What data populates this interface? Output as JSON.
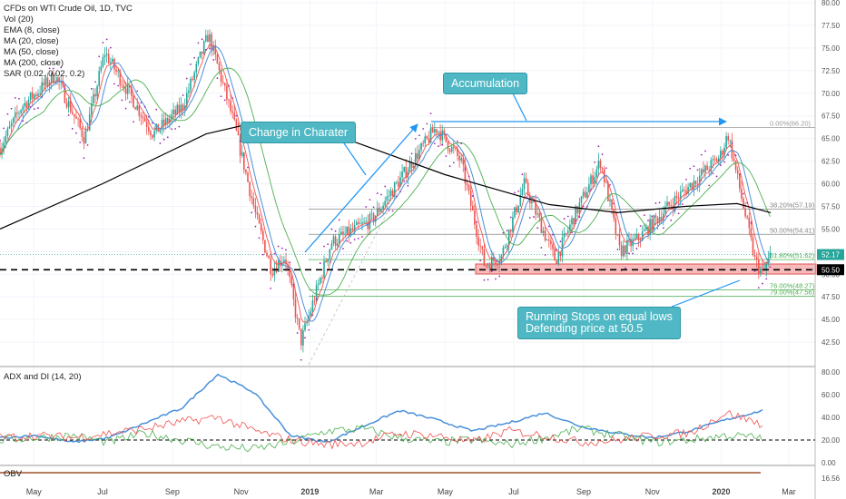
{
  "header": {
    "symbol_line": "CFDs on WTI Crude Oil, 1D, TVC",
    "indicators": [
      "Vol (20)",
      "EMA (8, close)",
      "MA (20, close)",
      "MA (50, close)",
      "MA (200, close)",
      "SAR (0.02, 0.02, 0.2)"
    ]
  },
  "annotations": {
    "accumulation": "Accumulation",
    "change_character": "Change in Charater",
    "running_stops_1": "Running Stops on equal lows",
    "running_stops_2": "Defending price at 50.5"
  },
  "fib_labels": [
    {
      "text": "0.00%(66.20)",
      "price": 66.2
    },
    {
      "text": "38.20%(57.19)",
      "price": 57.19
    },
    {
      "text": "50.00%(54.41)",
      "price": 54.41
    },
    {
      "text": "61.80%(51.62)",
      "price": 51.62
    },
    {
      "text": "76.00%(48.27)",
      "price": 48.27
    },
    {
      "text": "79.00%(47.56)",
      "price": 47.56
    }
  ],
  "price_badges": [
    {
      "text": "52.17",
      "price": 52.17,
      "color": "#26a69a"
    },
    {
      "text": "50.50",
      "price": 50.5,
      "color": "#000000"
    }
  ],
  "adx_panel": {
    "title": "ADX and DI (14, 20)",
    "ticks": [
      "80.00",
      "60.00",
      "40.00",
      "20.00",
      "0.00"
    ],
    "threshold": 20
  },
  "obv_panel": {
    "title": "OBV",
    "tick": "16.56"
  },
  "colors": {
    "up": "#26a69a",
    "down": "#ef5350",
    "ema": "#ef5350",
    "ma20": "#4a90d9",
    "ma50": "#4caf50",
    "ma200": "#000000",
    "sar": "#9c27b0",
    "annotation": "#4fb8c4",
    "arrow": "#2196f3",
    "zone": "#f28b8b",
    "adx": "#4a90d9",
    "di_plus": "#4caf50",
    "di_minus": "#ef5350"
  },
  "chart_data": {
    "type": "candlestick",
    "title": "CFDs on WTI Crude Oil, 1D, TVC",
    "y_axis": {
      "min": 40,
      "max": 80,
      "ticks": [
        42.5,
        45,
        47.5,
        50,
        52.5,
        55,
        57.5,
        60,
        62.5,
        65,
        67.5,
        70,
        72.5,
        75,
        77.5,
        80
      ]
    },
    "x_ticks": [
      "May",
      "Jul",
      "Sep",
      "Nov",
      "2019",
      "Mar",
      "May",
      "Jul",
      "Sep",
      "Nov",
      "2020",
      "Mar"
    ],
    "price_path": [
      {
        "date": "2018-04-01",
        "close": 64
      },
      {
        "date": "2018-04-20",
        "close": 68.5
      },
      {
        "date": "2018-05-20",
        "close": 72
      },
      {
        "date": "2018-06-15",
        "close": 65
      },
      {
        "date": "2018-07-03",
        "close": 74.5
      },
      {
        "date": "2018-08-15",
        "close": 65.5
      },
      {
        "date": "2018-09-10",
        "close": 68.5
      },
      {
        "date": "2018-10-03",
        "close": 76.5
      },
      {
        "date": "2018-10-25",
        "close": 67
      },
      {
        "date": "2018-11-15",
        "close": 56
      },
      {
        "date": "2018-11-28",
        "close": 50.5
      },
      {
        "date": "2018-12-10",
        "close": 52
      },
      {
        "date": "2018-12-24",
        "close": 42.5
      },
      {
        "date": "2019-01-20",
        "close": 53.5
      },
      {
        "date": "2019-02-25",
        "close": 56
      },
      {
        "date": "2019-04-23",
        "close": 66.2
      },
      {
        "date": "2019-05-15",
        "close": 62.5
      },
      {
        "date": "2019-06-05",
        "close": 51
      },
      {
        "date": "2019-06-20",
        "close": 52
      },
      {
        "date": "2019-07-10",
        "close": 60
      },
      {
        "date": "2019-08-07",
        "close": 51.5
      },
      {
        "date": "2019-08-22",
        "close": 56
      },
      {
        "date": "2019-09-16",
        "close": 62.5
      },
      {
        "date": "2019-10-03",
        "close": 52.5
      },
      {
        "date": "2019-10-20",
        "close": 54
      },
      {
        "date": "2019-11-15",
        "close": 57.5
      },
      {
        "date": "2019-12-31",
        "close": 63
      },
      {
        "date": "2020-01-07",
        "close": 65.5
      },
      {
        "date": "2020-01-31",
        "close": 51.5
      },
      {
        "date": "2020-02-07",
        "close": 50
      },
      {
        "date": "2020-02-14",
        "close": 52.17
      }
    ],
    "ma200_path": [
      {
        "date": "2018-04-01",
        "value": 55
      },
      {
        "date": "2018-07-01",
        "value": 60
      },
      {
        "date": "2018-10-01",
        "value": 65.5
      },
      {
        "date": "2018-11-15",
        "value": 66.8
      },
      {
        "date": "2019-02-01",
        "value": 65
      },
      {
        "date": "2019-05-01",
        "value": 61
      },
      {
        "date": "2019-08-01",
        "value": 57.7
      },
      {
        "date": "2019-10-01",
        "value": 56.8
      },
      {
        "date": "2019-12-01",
        "value": 57.5
      },
      {
        "date": "2020-01-15",
        "value": 57.8
      },
      {
        "date": "2020-02-14",
        "value": 56.8
      }
    ],
    "levels": [
      {
        "name": "support",
        "value": 50.5
      },
      {
        "name": "fib-0",
        "value": 66.2
      },
      {
        "name": "fib-38.2",
        "value": 57.19
      },
      {
        "name": "fib-50",
        "value": 54.41
      },
      {
        "name": "fib-61.8",
        "value": 51.62
      },
      {
        "name": "fib-76",
        "value": 48.27
      },
      {
        "name": "fib-79",
        "value": 47.56
      }
    ],
    "adx_series": [
      {
        "name": "ADX",
        "values": [
          22,
          24,
          18,
          22,
          35,
          48,
          78,
          62,
          24,
          18,
          32,
          46,
          38,
          28,
          35,
          44,
          32,
          26,
          22,
          28,
          38,
          46
        ]
      },
      {
        "name": "+DI",
        "values": [
          20,
          22,
          24,
          18,
          26,
          20,
          14,
          12,
          18,
          28,
          30,
          22,
          18,
          20,
          16,
          22,
          30,
          24,
          18,
          20,
          24,
          22
        ]
      },
      {
        "name": "-DI",
        "values": [
          22,
          24,
          22,
          26,
          30,
          36,
          40,
          28,
          20,
          16,
          18,
          26,
          24,
          18,
          28,
          24,
          18,
          20,
          24,
          26,
          44,
          34
        ]
      }
    ]
  }
}
